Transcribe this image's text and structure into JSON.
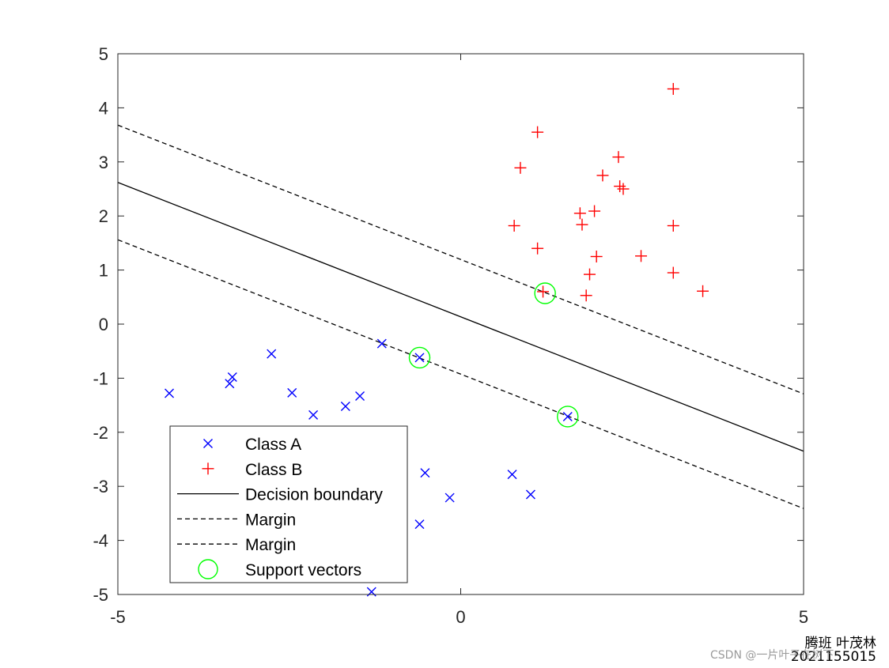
{
  "chart_data": {
    "type": "scatter",
    "title": "",
    "xlabel": "",
    "ylabel": "",
    "xlim": [
      -5,
      5
    ],
    "ylim": [
      -5,
      5
    ],
    "x_ticks": [
      -5,
      0,
      5
    ],
    "y_ticks": [
      5,
      4,
      3,
      2,
      1,
      0,
      -1,
      -2,
      -3,
      -4,
      -5
    ],
    "grid": false,
    "legend_position": "bottom-left",
    "series": [
      {
        "name": "Class A",
        "marker": "x",
        "color": "#0000ff",
        "points": [
          [
            -4.25,
            -1.28
          ],
          [
            -3.33,
            -0.98
          ],
          [
            -3.37,
            -1.1
          ],
          [
            -2.76,
            -0.55
          ],
          [
            -2.46,
            -1.27
          ],
          [
            -2.15,
            -1.68
          ],
          [
            -1.68,
            -1.52
          ],
          [
            -1.47,
            -1.33
          ],
          [
            -1.15,
            -0.36
          ],
          [
            -0.6,
            -0.62
          ],
          [
            1.56,
            -1.71
          ],
          [
            -0.52,
            -2.75
          ],
          [
            -0.16,
            -3.21
          ],
          [
            0.75,
            -2.78
          ],
          [
            1.02,
            -3.15
          ],
          [
            -0.6,
            -3.7
          ],
          [
            -1.3,
            -4.95
          ]
        ]
      },
      {
        "name": "Class B",
        "marker": "+",
        "color": "#ff0000",
        "points": [
          [
            3.1,
            4.35
          ],
          [
            1.12,
            3.55
          ],
          [
            2.3,
            3.09
          ],
          [
            0.87,
            2.89
          ],
          [
            2.07,
            2.75
          ],
          [
            2.32,
            2.55
          ],
          [
            2.37,
            2.5
          ],
          [
            1.74,
            2.05
          ],
          [
            1.95,
            2.09
          ],
          [
            0.78,
            1.82
          ],
          [
            1.77,
            1.84
          ],
          [
            3.1,
            1.82
          ],
          [
            1.12,
            1.4
          ],
          [
            1.98,
            1.25
          ],
          [
            2.63,
            1.26
          ],
          [
            1.88,
            0.92
          ],
          [
            3.1,
            0.95
          ],
          [
            1.83,
            0.53
          ],
          [
            3.53,
            0.61
          ],
          [
            1.2,
            0.6
          ]
        ]
      }
    ],
    "lines": [
      {
        "name": "Decision boundary",
        "style": "solid",
        "color": "#000000",
        "points": [
          [
            -5,
            2.62
          ],
          [
            5,
            -2.35
          ]
        ]
      },
      {
        "name": "Margin",
        "style": "dashed",
        "color": "#000000",
        "points": [
          [
            -5,
            3.68
          ],
          [
            5,
            -1.29
          ]
        ]
      },
      {
        "name": "Margin",
        "style": "dashed",
        "color": "#000000",
        "points": [
          [
            -5,
            1.56
          ],
          [
            5,
            -3.41
          ]
        ]
      }
    ],
    "support_vectors": {
      "name": "Support vectors",
      "color": "#00ff00",
      "points": [
        [
          1.23,
          0.57
        ],
        [
          -0.6,
          -0.62
        ],
        [
          1.56,
          -1.71
        ]
      ]
    },
    "legend": [
      "Class A",
      "Class B",
      "Decision boundary",
      "Margin",
      "Margin",
      "Support vectors"
    ]
  },
  "annotations": {
    "name": "腾班 叶茂林",
    "id": "2021155015",
    "watermark": "CSDN @一片叶子在树下"
  }
}
